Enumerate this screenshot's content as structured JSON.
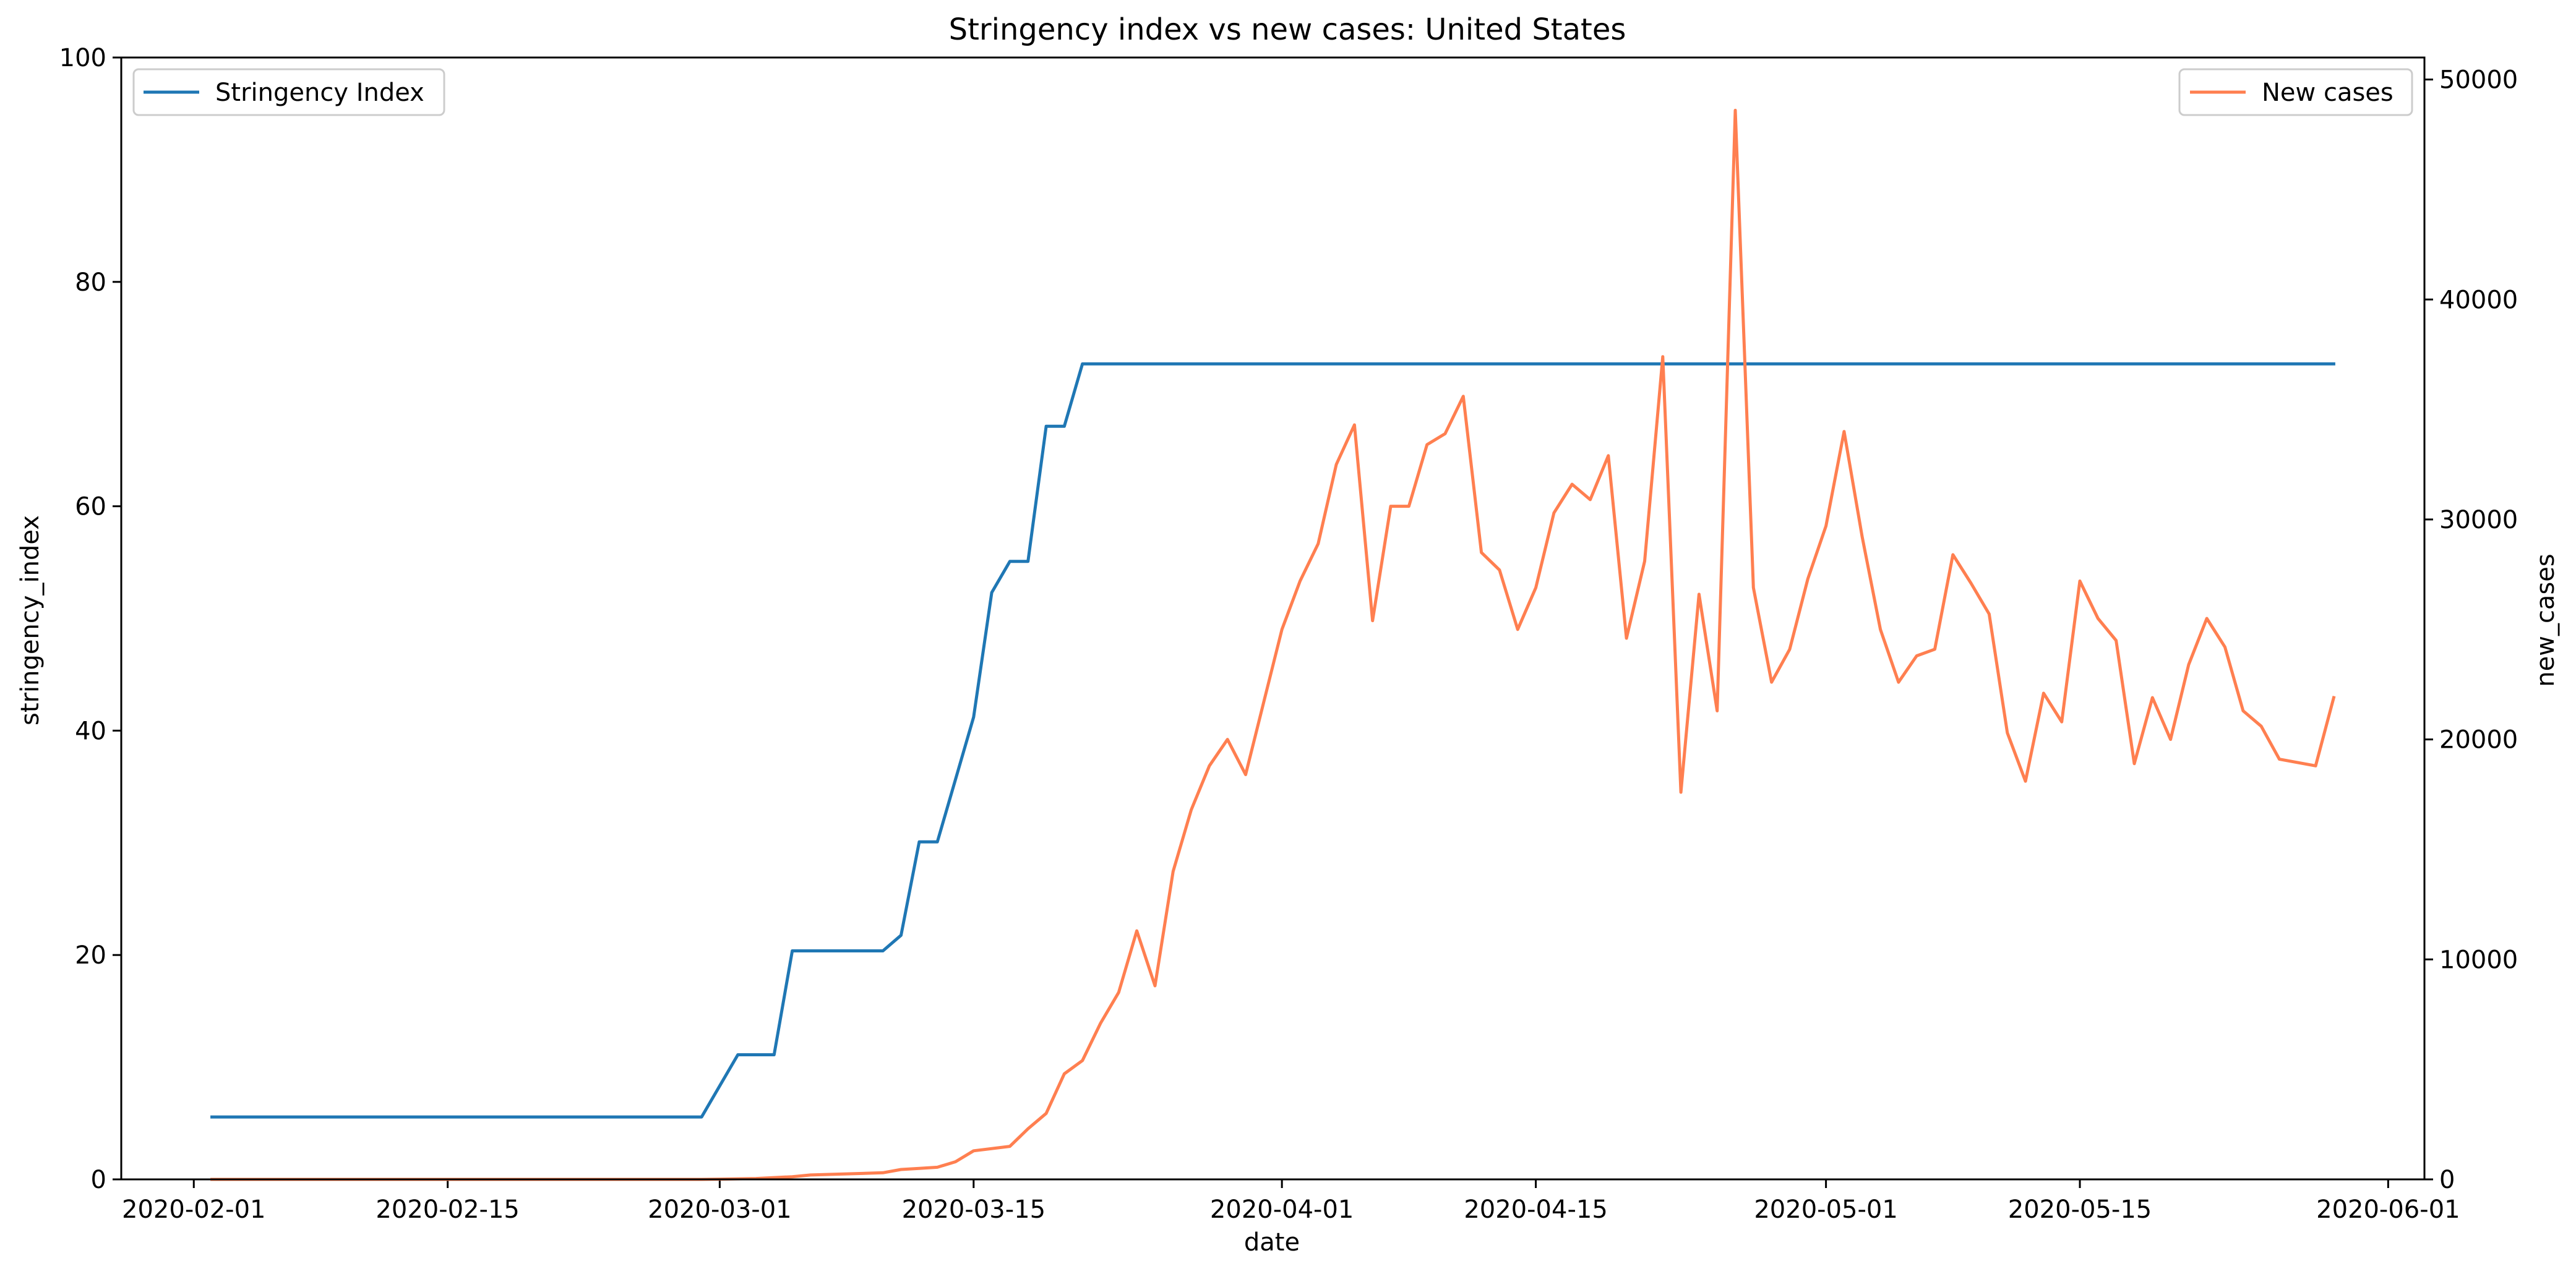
{
  "chart_data": {
    "type": "line",
    "title": "Stringency index vs new cases:  United States",
    "xlabel": "date",
    "ylabel_left": "stringency_index",
    "ylabel_right": "new_cases",
    "xlim": [
      "2020-01-28",
      "2020-06-03"
    ],
    "ylim_left": [
      0,
      100
    ],
    "ylim_right": [
      0,
      51000
    ],
    "x_ticks": [
      "2020-02-01",
      "2020-02-15",
      "2020-03-01",
      "2020-03-15",
      "2020-04-01",
      "2020-04-15",
      "2020-05-01",
      "2020-05-15",
      "2020-06-01"
    ],
    "y_ticks_left": [
      0,
      20,
      40,
      60,
      80,
      100
    ],
    "y_ticks_right": [
      0,
      10000,
      20000,
      30000,
      40000,
      50000
    ],
    "grid": false,
    "series": [
      {
        "name": "Stringency Index",
        "axis": "left",
        "color": "#1f77b4",
        "legend_position": "top-left",
        "points": [
          [
            "2020-02-02",
            5.56
          ],
          [
            "2020-02-29",
            5.56
          ],
          [
            "2020-03-02",
            11.11
          ],
          [
            "2020-03-04",
            11.11
          ],
          [
            "2020-03-05",
            20.37
          ],
          [
            "2020-03-10",
            20.37
          ],
          [
            "2020-03-11",
            21.76
          ],
          [
            "2020-03-12",
            30.09
          ],
          [
            "2020-03-13",
            30.09
          ],
          [
            "2020-03-15",
            41.2
          ],
          [
            "2020-03-16",
            52.31
          ],
          [
            "2020-03-17",
            55.09
          ],
          [
            "2020-03-18",
            55.09
          ],
          [
            "2020-03-19",
            67.13
          ],
          [
            "2020-03-20",
            67.13
          ],
          [
            "2020-03-21",
            72.69
          ],
          [
            "2020-05-29",
            72.69
          ]
        ]
      },
      {
        "name": "New cases",
        "axis": "right",
        "color": "#ff7f50",
        "legend_position": "top-right",
        "points": [
          [
            "2020-02-02",
            0
          ],
          [
            "2020-02-15",
            0
          ],
          [
            "2020-02-29",
            0
          ],
          [
            "2020-03-01",
            10
          ],
          [
            "2020-03-03",
            40
          ],
          [
            "2020-03-05",
            120
          ],
          [
            "2020-03-06",
            200
          ],
          [
            "2020-03-08",
            250
          ],
          [
            "2020-03-10",
            300
          ],
          [
            "2020-03-11",
            450
          ],
          [
            "2020-03-12",
            500
          ],
          [
            "2020-03-13",
            550
          ],
          [
            "2020-03-14",
            800
          ],
          [
            "2020-03-15",
            1300
          ],
          [
            "2020-03-17",
            1500
          ],
          [
            "2020-03-18",
            2300
          ],
          [
            "2020-03-19",
            3000
          ],
          [
            "2020-03-20",
            4800
          ],
          [
            "2020-03-21",
            5400
          ],
          [
            "2020-03-22",
            7100
          ],
          [
            "2020-03-23",
            8500
          ],
          [
            "2020-03-24",
            11300
          ],
          [
            "2020-03-25",
            8800
          ],
          [
            "2020-03-26",
            14000
          ],
          [
            "2020-03-27",
            16800
          ],
          [
            "2020-03-28",
            18800
          ],
          [
            "2020-03-29",
            20000
          ],
          [
            "2020-03-30",
            18400
          ],
          [
            "2020-03-31",
            21700
          ],
          [
            "2020-04-01",
            25000
          ],
          [
            "2020-04-02",
            27200
          ],
          [
            "2020-04-03",
            28900
          ],
          [
            "2020-04-04",
            32500
          ],
          [
            "2020-04-05",
            34300
          ],
          [
            "2020-04-06",
            25400
          ],
          [
            "2020-04-07",
            30600
          ],
          [
            "2020-04-08",
            30600
          ],
          [
            "2020-04-09",
            33400
          ],
          [
            "2020-04-10",
            33900
          ],
          [
            "2020-04-11",
            35600
          ],
          [
            "2020-04-12",
            28500
          ],
          [
            "2020-04-13",
            27700
          ],
          [
            "2020-04-14",
            25000
          ],
          [
            "2020-04-15",
            26900
          ],
          [
            "2020-04-16",
            30300
          ],
          [
            "2020-04-17",
            31600
          ],
          [
            "2020-04-18",
            30900
          ],
          [
            "2020-04-19",
            32900
          ],
          [
            "2020-04-20",
            24600
          ],
          [
            "2020-04-21",
            28100
          ],
          [
            "2020-04-22",
            37400
          ],
          [
            "2020-04-23",
            17600
          ],
          [
            "2020-04-24",
            26600
          ],
          [
            "2020-04-25",
            21300
          ],
          [
            "2020-04-26",
            48600
          ],
          [
            "2020-04-27",
            26900
          ],
          [
            "2020-04-28",
            22600
          ],
          [
            "2020-04-29",
            24100
          ],
          [
            "2020-04-30",
            27300
          ],
          [
            "2020-05-01",
            29700
          ],
          [
            "2020-05-02",
            34000
          ],
          [
            "2020-05-03",
            29200
          ],
          [
            "2020-05-04",
            25000
          ],
          [
            "2020-05-05",
            22600
          ],
          [
            "2020-05-06",
            23800
          ],
          [
            "2020-05-07",
            24100
          ],
          [
            "2020-05-08",
            28400
          ],
          [
            "2020-05-09",
            27100
          ],
          [
            "2020-05-10",
            25700
          ],
          [
            "2020-05-11",
            20300
          ],
          [
            "2020-05-12",
            18100
          ],
          [
            "2020-05-13",
            22100
          ],
          [
            "2020-05-14",
            20800
          ],
          [
            "2020-05-15",
            27200
          ],
          [
            "2020-05-16",
            25500
          ],
          [
            "2020-05-17",
            24500
          ],
          [
            "2020-05-18",
            18900
          ],
          [
            "2020-05-19",
            21900
          ],
          [
            "2020-05-20",
            20000
          ],
          [
            "2020-05-21",
            23400
          ],
          [
            "2020-05-22",
            25500
          ],
          [
            "2020-05-23",
            24200
          ],
          [
            "2020-05-24",
            21300
          ],
          [
            "2020-05-25",
            20600
          ],
          [
            "2020-05-26",
            19100
          ],
          [
            "2020-05-28",
            18800
          ],
          [
            "2020-05-29",
            21900
          ]
        ]
      }
    ]
  }
}
